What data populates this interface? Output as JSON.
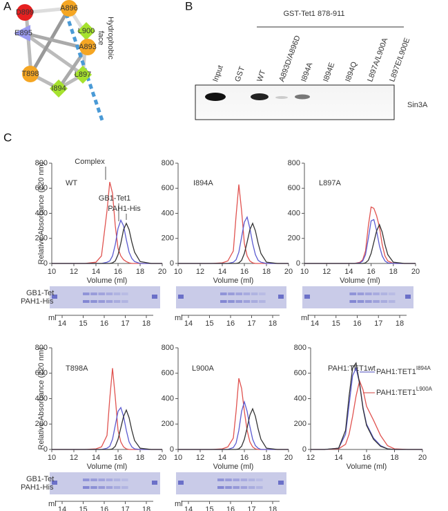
{
  "panel_a": {
    "label": "A",
    "residues": [
      "D899",
      "A896",
      "E895",
      "L900",
      "A893",
      "T898",
      "L897",
      "I894"
    ],
    "face_label": [
      "Hydrophobic",
      "face"
    ]
  },
  "panel_b": {
    "label": "B",
    "header": "GST-Tet1 878-911",
    "lanes": [
      "Input",
      "GST",
      "WT",
      "A893D/A896D",
      "I894A",
      "I894E",
      "I894Q",
      "L897A/L900A",
      "L897E/L900E"
    ],
    "protein": "Sin3A"
  },
  "panel_c": {
    "label": "C",
    "y_label": "Relative Absorbance (220 nm)",
    "gel_labels": [
      "GB1-Tet",
      "PAH1-His"
    ],
    "gel_unit": "ml",
    "gel_ticks": [
      "14",
      "15",
      "16",
      "17",
      "18"
    ]
  },
  "chart_data": [
    {
      "type": "line",
      "title": "WT",
      "x_label": "Volume (ml)",
      "xlim": [
        10,
        20
      ],
      "xticks": [
        10,
        12,
        14,
        16,
        18,
        20
      ],
      "ylim": [
        0,
        800
      ],
      "yticks": [
        0,
        200,
        400,
        600,
        800
      ],
      "x": [
        10,
        12,
        13,
        14,
        14.5,
        15,
        15.25,
        15.5,
        15.75,
        16,
        16.25,
        16.5,
        16.75,
        17,
        17.25,
        17.5,
        18,
        19,
        20
      ],
      "annotations": [
        {
          "text": "Complex"
        },
        {
          "text": "GB1-Tet1"
        },
        {
          "text": "PAH1-His"
        }
      ],
      "series": [
        {
          "color": "#e0524f",
          "values": [
            0,
            0,
            0,
            10,
            60,
            420,
            650,
            560,
            300,
            120,
            60,
            30,
            15,
            5,
            0,
            0,
            0,
            0,
            0
          ]
        },
        {
          "color": "#5a5ad0",
          "values": [
            0,
            0,
            0,
            0,
            0,
            10,
            20,
            60,
            150,
            280,
            345,
            300,
            190,
            90,
            40,
            15,
            0,
            0,
            0
          ]
        },
        {
          "color": "#333333",
          "values": [
            0,
            0,
            0,
            0,
            0,
            0,
            0,
            5,
            20,
            70,
            160,
            270,
            320,
            270,
            170,
            90,
            15,
            0,
            0
          ]
        }
      ]
    },
    {
      "type": "line",
      "title": "I894A",
      "x_label": "Volume (ml)",
      "xlim": [
        10,
        20
      ],
      "xticks": [
        10,
        12,
        14,
        16,
        18,
        20
      ],
      "ylim": [
        0,
        800
      ],
      "yticks": [
        0,
        200,
        400,
        600,
        800
      ],
      "x": [
        10,
        12,
        13,
        14,
        14.5,
        15,
        15.25,
        15.5,
        15.75,
        16,
        16.25,
        16.5,
        16.75,
        17,
        17.25,
        17.5,
        18,
        19,
        20
      ],
      "series": [
        {
          "color": "#e0524f",
          "values": [
            0,
            0,
            0,
            5,
            20,
            100,
            380,
            630,
            420,
            160,
            60,
            20,
            5,
            0,
            0,
            0,
            0,
            0,
            0
          ]
        },
        {
          "color": "#5a5ad0",
          "values": [
            0,
            0,
            0,
            0,
            0,
            10,
            30,
            90,
            210,
            330,
            370,
            280,
            160,
            70,
            25,
            10,
            0,
            0,
            0
          ]
        },
        {
          "color": "#333333",
          "values": [
            0,
            0,
            0,
            0,
            0,
            0,
            0,
            5,
            25,
            80,
            170,
            270,
            320,
            260,
            160,
            80,
            10,
            0,
            0
          ]
        }
      ]
    },
    {
      "type": "line",
      "title": "L897A",
      "x_label": "Volume (ml)",
      "xlim": [
        10,
        20
      ],
      "xticks": [
        10,
        12,
        14,
        16,
        18,
        20
      ],
      "ylim": [
        0,
        800
      ],
      "yticks": [
        0,
        200,
        400,
        600,
        800
      ],
      "x": [
        10,
        12,
        13,
        14,
        14.5,
        15,
        15.25,
        15.5,
        15.75,
        16,
        16.25,
        16.5,
        16.75,
        17,
        17.25,
        17.5,
        18,
        19,
        20
      ],
      "series": [
        {
          "color": "#e0524f",
          "values": [
            0,
            0,
            0,
            0,
            0,
            10,
            30,
            100,
            300,
            450,
            440,
            380,
            290,
            150,
            60,
            20,
            0,
            0,
            0
          ]
        },
        {
          "color": "#5a5ad0",
          "values": [
            0,
            0,
            0,
            0,
            0,
            5,
            20,
            70,
            200,
            340,
            350,
            260,
            140,
            60,
            20,
            5,
            0,
            0,
            0
          ]
        },
        {
          "color": "#333333",
          "values": [
            0,
            0,
            0,
            0,
            0,
            0,
            0,
            5,
            25,
            80,
            170,
            260,
            310,
            250,
            150,
            70,
            10,
            0,
            0
          ]
        }
      ]
    },
    {
      "type": "line",
      "title": "T898A",
      "x_label": "Volume (ml)",
      "xlim": [
        10,
        20
      ],
      "xticks": [
        10,
        12,
        14,
        16,
        18,
        20
      ],
      "ylim": [
        0,
        800
      ],
      "yticks": [
        0,
        200,
        400,
        600,
        800
      ],
      "x": [
        10,
        12,
        13,
        14,
        14.5,
        15,
        15.25,
        15.5,
        15.75,
        16,
        16.25,
        16.5,
        16.75,
        17,
        17.25,
        17.5,
        18,
        19,
        20
      ],
      "series": [
        {
          "color": "#e0524f",
          "values": [
            0,
            0,
            0,
            5,
            20,
            110,
            400,
            640,
            410,
            150,
            60,
            20,
            5,
            0,
            0,
            0,
            0,
            0,
            0
          ]
        },
        {
          "color": "#5a5ad0",
          "values": [
            0,
            0,
            0,
            0,
            0,
            10,
            25,
            80,
            190,
            300,
            330,
            260,
            150,
            60,
            20,
            5,
            0,
            0,
            0
          ]
        },
        {
          "color": "#333333",
          "values": [
            0,
            0,
            0,
            0,
            0,
            0,
            0,
            5,
            25,
            80,
            170,
            260,
            310,
            250,
            150,
            70,
            10,
            0,
            0
          ]
        }
      ]
    },
    {
      "type": "line",
      "title": "L900A",
      "x_label": "Volume (ml)",
      "xlim": [
        10,
        20
      ],
      "xticks": [
        10,
        12,
        14,
        16,
        18,
        20
      ],
      "ylim": [
        0,
        800
      ],
      "yticks": [
        0,
        200,
        400,
        600,
        800
      ],
      "x": [
        10,
        12,
        13,
        14,
        14.5,
        15,
        15.25,
        15.5,
        15.75,
        16,
        16.25,
        16.5,
        16.75,
        17,
        17.25,
        17.5,
        18,
        19,
        20
      ],
      "series": [
        {
          "color": "#e0524f",
          "values": [
            0,
            0,
            0,
            5,
            20,
            90,
            300,
            560,
            480,
            300,
            150,
            60,
            20,
            5,
            0,
            0,
            0,
            0,
            0
          ]
        },
        {
          "color": "#5a5ad0",
          "values": [
            0,
            0,
            0,
            0,
            0,
            15,
            50,
            150,
            300,
            375,
            300,
            180,
            80,
            30,
            10,
            0,
            0,
            0,
            0
          ]
        },
        {
          "color": "#333333",
          "values": [
            0,
            0,
            0,
            0,
            0,
            0,
            0,
            5,
            25,
            80,
            170,
            270,
            320,
            260,
            160,
            80,
            10,
            0,
            0
          ]
        }
      ]
    },
    {
      "type": "line",
      "title": "PAH1:TET1wt",
      "x_label": "Volume (ml)",
      "xlim": [
        12,
        20
      ],
      "xticks": [
        12,
        14,
        16,
        18,
        20
      ],
      "ylim": [
        0,
        800
      ],
      "yticks": [
        0,
        200,
        400,
        600,
        800
      ],
      "x": [
        12,
        13,
        14,
        14.5,
        14.75,
        15,
        15.25,
        15.5,
        15.75,
        16,
        16.5,
        17,
        17.5,
        18,
        19,
        20
      ],
      "annotations": [
        {
          "text": "PAH1:TET1",
          "sup": "I894A",
          "color": "#4a4ab8"
        },
        {
          "text": "PAH1:TET1",
          "sup": "L900A",
          "color": "#d0403d"
        }
      ],
      "series": [
        {
          "color": "#e0524f",
          "values": [
            0,
            0,
            5,
            40,
            120,
            260,
            420,
            540,
            470,
            340,
            230,
            110,
            30,
            5,
            0,
            0
          ]
        },
        {
          "color": "#5a5ad0",
          "values": [
            0,
            0,
            10,
            120,
            350,
            580,
            640,
            520,
            330,
            200,
            90,
            30,
            5,
            0,
            0,
            0
          ]
        },
        {
          "color": "#333333",
          "values": [
            0,
            0,
            10,
            150,
            420,
            640,
            680,
            520,
            320,
            190,
            80,
            25,
            5,
            0,
            0,
            0
          ]
        }
      ]
    }
  ]
}
